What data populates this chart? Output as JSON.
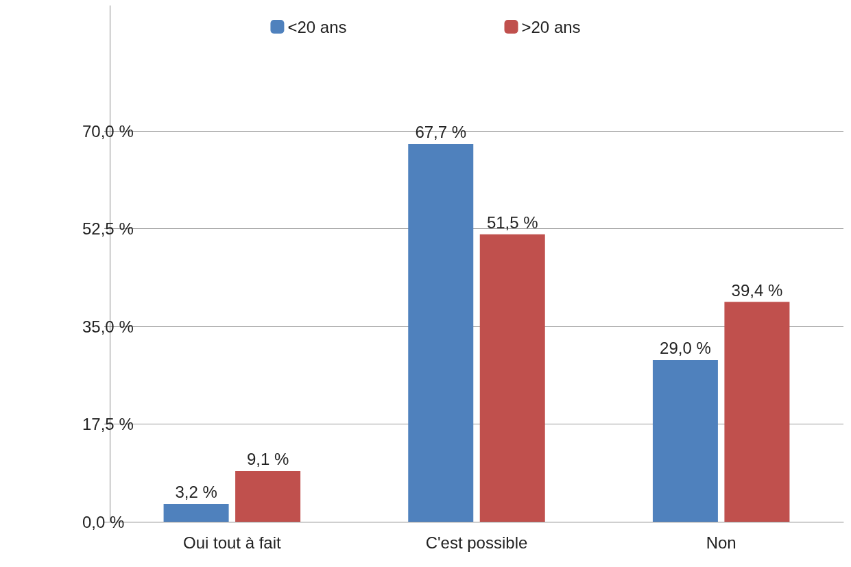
{
  "chart_data": {
    "type": "bar",
    "categories": [
      "Oui tout à fait",
      "C'est possible",
      "Non"
    ],
    "series": [
      {
        "name": "<20 ans",
        "color": "#4f81bd",
        "values": [
          3.2,
          67.7,
          29.0
        ],
        "value_labels": [
          "3,2 %",
          "67,7 %",
          "29,0 %"
        ]
      },
      {
        "name": ">20 ans",
        "color": "#c0504d",
        "values": [
          9.1,
          51.5,
          39.4
        ],
        "value_labels": [
          "9,1 %",
          "51,5 %",
          "39,4 %"
        ]
      }
    ],
    "ylim": [
      0,
      92.5
    ],
    "yticks": [
      {
        "value": 0,
        "label": "0,0 %"
      },
      {
        "value": 17.5,
        "label": "17,5 %"
      },
      {
        "value": 35,
        "label": "35,0 %"
      },
      {
        "value": 52.5,
        "label": "52,5 %"
      },
      {
        "value": 70,
        "label": "70,0 %"
      }
    ],
    "grid": "y",
    "legend": "top"
  }
}
